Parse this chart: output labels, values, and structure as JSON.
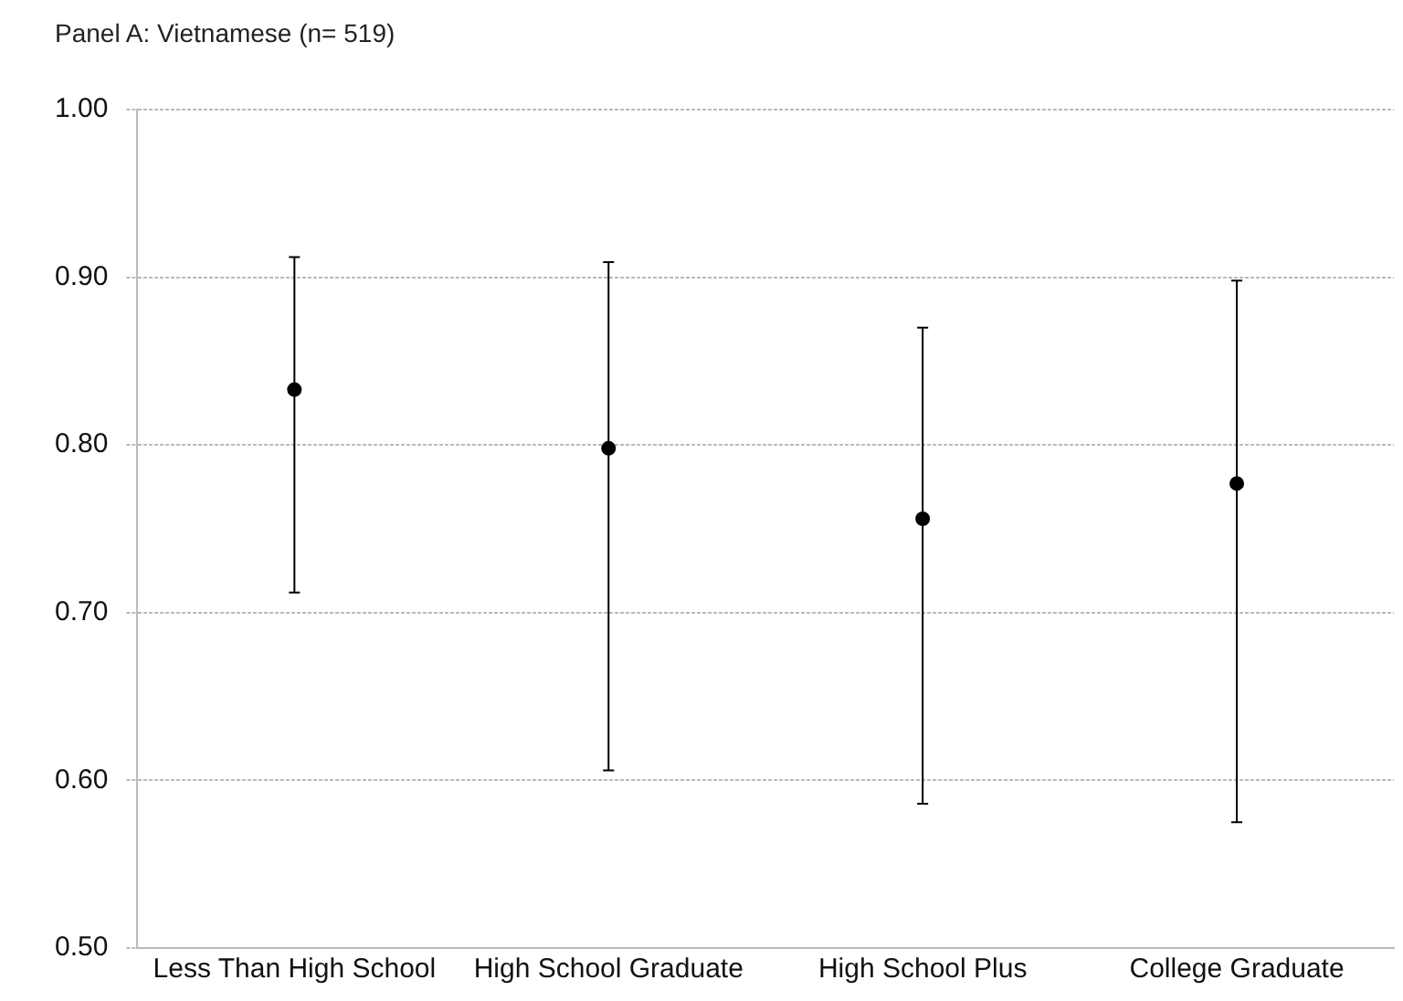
{
  "chart_data": {
    "type": "scatter",
    "title": "Panel A: Vietnamese (n= 519)",
    "categories": [
      "Less Than High School",
      "High School Graduate",
      "High School Plus",
      "College Graduate"
    ],
    "series": [
      {
        "color": "#000000",
        "values": [
          0.833,
          0.798,
          0.756,
          0.777
        ],
        "errors": [
          [
            0.712,
            0.912
          ],
          [
            0.606,
            0.909
          ],
          [
            0.586,
            0.87
          ],
          [
            0.575,
            0.898
          ]
        ]
      }
    ],
    "ylim": [
      0.5,
      1.0
    ],
    "yticks": [
      {
        "value": 0.5,
        "label": "0.50"
      },
      {
        "value": 0.6,
        "label": "0.60"
      },
      {
        "value": 0.7,
        "label": "0.70"
      },
      {
        "value": 0.8,
        "label": "0.80"
      },
      {
        "value": 0.9,
        "label": "0.90"
      },
      {
        "value": 1.0,
        "label": "1.00"
      }
    ],
    "grid": "y",
    "marker": "circle",
    "legend": false
  }
}
